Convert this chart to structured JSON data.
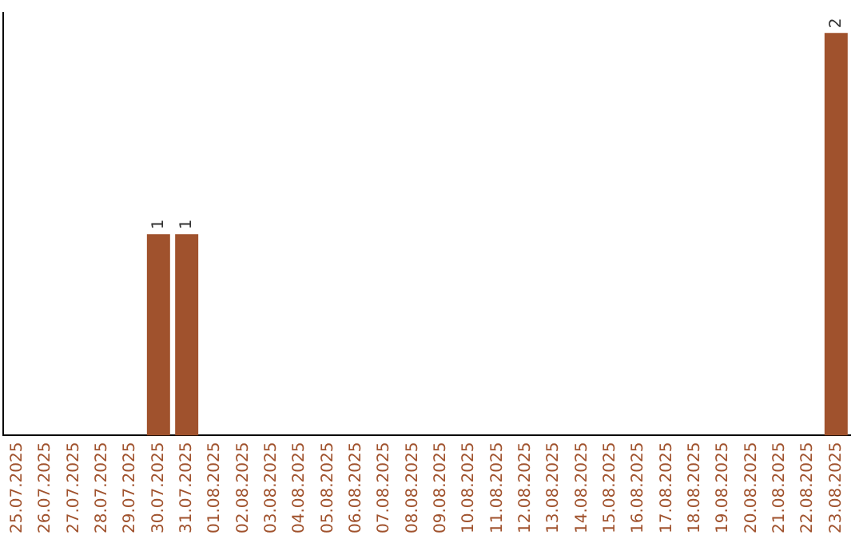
{
  "chart_data": {
    "type": "bar",
    "categories": [
      "25.07.2025",
      "26.07.2025",
      "27.07.2025",
      "28.07.2025",
      "29.07.2025",
      "30.07.2025",
      "31.07.2025",
      "01.08.2025",
      "02.08.2025",
      "03.08.2025",
      "04.08.2025",
      "05.08.2025",
      "06.08.2025",
      "07.08.2025",
      "08.08.2025",
      "09.08.2025",
      "10.08.2025",
      "11.08.2025",
      "12.08.2025",
      "13.08.2025",
      "14.08.2025",
      "15.08.2025",
      "16.08.2025",
      "17.08.2025",
      "18.08.2025",
      "19.08.2025",
      "20.08.2025",
      "21.08.2025",
      "22.08.2025",
      "23.08.2025"
    ],
    "values": [
      0,
      0,
      0,
      0,
      0,
      1,
      1,
      0,
      0,
      0,
      0,
      0,
      0,
      0,
      0,
      0,
      0,
      0,
      0,
      0,
      0,
      0,
      0,
      0,
      0,
      0,
      0,
      0,
      0,
      2
    ],
    "value_labels": [
      null,
      null,
      null,
      null,
      null,
      "1",
      "1",
      null,
      null,
      null,
      null,
      null,
      null,
      null,
      null,
      null,
      null,
      null,
      null,
      null,
      null,
      null,
      null,
      null,
      null,
      null,
      null,
      null,
      null,
      "2"
    ],
    "color": "#a0522d",
    "ylim": [
      0,
      2.1
    ],
    "tick_labels": "x",
    "grid": false,
    "legend": false
  }
}
